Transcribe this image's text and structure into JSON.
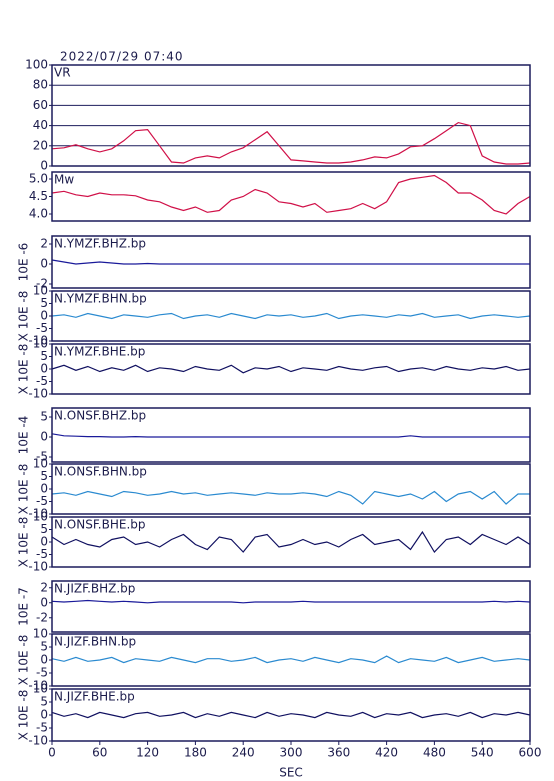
{
  "chart_data": [
    {
      "type": "line",
      "title": "2022/07/29 07:40",
      "label": "VR",
      "color": "#d01048",
      "grid": true,
      "x": [
        0,
        15,
        30,
        45,
        60,
        75,
        90,
        105,
        120,
        135,
        150,
        165,
        180,
        195,
        210,
        225,
        240,
        255,
        270,
        285,
        300,
        315,
        330,
        345,
        360,
        375,
        390,
        405,
        420,
        435,
        450,
        465,
        480,
        495,
        510,
        525,
        540,
        555,
        570,
        585,
        600
      ],
      "values": [
        17,
        18,
        21,
        17,
        14,
        17,
        25,
        35,
        36,
        20,
        4,
        3,
        8,
        10,
        8,
        14,
        18,
        26,
        34,
        20,
        6,
        5,
        4,
        3,
        3,
        4,
        6,
        9,
        8,
        12,
        19,
        20,
        27,
        35,
        43,
        40,
        10,
        4,
        2,
        2,
        3
      ],
      "xlim": [
        0,
        600
      ],
      "ylim": [
        0,
        100
      ],
      "yticks": [
        0,
        20,
        40,
        60,
        80,
        100
      ]
    },
    {
      "type": "line",
      "label": "Mw",
      "color": "#d01048",
      "x": [
        0,
        15,
        30,
        45,
        60,
        75,
        90,
        105,
        120,
        135,
        150,
        165,
        180,
        195,
        210,
        225,
        240,
        255,
        270,
        285,
        300,
        315,
        330,
        345,
        360,
        375,
        390,
        405,
        420,
        435,
        450,
        465,
        480,
        495,
        510,
        525,
        540,
        555,
        570,
        585,
        600
      ],
      "values": [
        4.6,
        4.65,
        4.55,
        4.5,
        4.6,
        4.55,
        4.55,
        4.52,
        4.4,
        4.35,
        4.2,
        4.1,
        4.2,
        4.05,
        4.1,
        4.4,
        4.5,
        4.7,
        4.6,
        4.35,
        4.3,
        4.2,
        4.3,
        4.05,
        4.1,
        4.15,
        4.3,
        4.15,
        4.35,
        4.9,
        5.0,
        5.05,
        5.1,
        4.9,
        4.6,
        4.6,
        4.4,
        4.1,
        4.0,
        4.3,
        4.5
      ],
      "xlim": [
        0,
        600
      ],
      "ylim": [
        3.8,
        5.2
      ],
      "yticks": [
        {
          "value": 4,
          "label": "4.0"
        },
        {
          "value": 4.5,
          "label": "4.5"
        },
        {
          "value": 5,
          "label": "5.0"
        }
      ]
    },
    {
      "type": "line",
      "label": "N.YMZF.BHZ.bp",
      "ylabel": "10E -6",
      "color": "#1a1a9a",
      "x": [
        0,
        15,
        30,
        45,
        60,
        75,
        90,
        105,
        120,
        135,
        150,
        165,
        180,
        195,
        210,
        225,
        240,
        255,
        270,
        285,
        300,
        315,
        330,
        345,
        360,
        375,
        390,
        405,
        420,
        435,
        450,
        465,
        480,
        495,
        510,
        525,
        540,
        555,
        570,
        585,
        600
      ],
      "values": [
        0.4,
        0.2,
        0,
        0.1,
        0.2,
        0.1,
        0,
        0,
        0.05,
        0,
        0,
        0,
        0,
        0,
        0,
        0,
        0,
        0,
        0,
        0,
        0,
        0,
        0,
        0,
        0,
        0,
        0,
        0,
        0,
        0,
        0,
        0,
        0,
        0,
        0,
        0,
        0,
        0,
        0,
        0,
        0
      ],
      "xlim": [
        0,
        600
      ],
      "ylim": [
        -2.4,
        2.8
      ],
      "yticks": [
        -2,
        0,
        2
      ]
    },
    {
      "type": "line",
      "label": "N.YMZF.BHN.bp",
      "ylabel": "X 10E -8",
      "color": "#2a8ad0",
      "x": [
        0,
        15,
        30,
        45,
        60,
        75,
        90,
        105,
        120,
        135,
        150,
        165,
        180,
        195,
        210,
        225,
        240,
        255,
        270,
        285,
        300,
        315,
        330,
        345,
        360,
        375,
        390,
        405,
        420,
        435,
        450,
        465,
        480,
        495,
        510,
        525,
        540,
        555,
        570,
        585,
        600
      ],
      "values": [
        0,
        0.5,
        -0.5,
        1,
        0,
        -1,
        0.5,
        0,
        -0.5,
        0.5,
        1,
        -1,
        0,
        0.5,
        -0.5,
        1,
        0,
        -1,
        0.5,
        0,
        0.5,
        -0.5,
        0,
        1,
        -1,
        0,
        0.5,
        0,
        -0.5,
        0.5,
        0,
        1,
        -0.5,
        0,
        0.5,
        -1,
        0,
        0.5,
        0,
        -0.5,
        0
      ],
      "xlim": [
        0,
        600
      ],
      "ylim": [
        -10,
        10
      ],
      "yticks": [
        -10,
        -5,
        0,
        5,
        10
      ]
    },
    {
      "type": "line",
      "label": "N.YMZF.BHE.bp",
      "ylabel": "X 10E -8",
      "color": "#101060",
      "x": [
        0,
        15,
        30,
        45,
        60,
        75,
        90,
        105,
        120,
        135,
        150,
        165,
        180,
        195,
        210,
        225,
        240,
        255,
        270,
        285,
        300,
        315,
        330,
        345,
        360,
        375,
        390,
        405,
        420,
        435,
        450,
        465,
        480,
        495,
        510,
        525,
        540,
        555,
        570,
        585,
        600
      ],
      "values": [
        0,
        1.5,
        -0.5,
        1,
        -1,
        0.5,
        -0.5,
        1.5,
        -1,
        0.5,
        0,
        -1,
        1,
        0,
        -0.5,
        1.5,
        -1.5,
        0.5,
        0,
        1,
        -1,
        0.5,
        0,
        -0.5,
        1,
        0,
        -0.5,
        0.5,
        1,
        -1,
        0,
        0.5,
        -0.5,
        1,
        0,
        -0.5,
        0.5,
        0,
        1,
        -0.5,
        0
      ],
      "xlim": [
        0,
        600
      ],
      "ylim": [
        -10,
        10
      ],
      "yticks": [
        -10,
        -5,
        0,
        5,
        10
      ]
    },
    {
      "type": "line",
      "label": "N.ONSF.BHZ.bp",
      "ylabel": "10E -4",
      "color": "#1a1a9a",
      "x": [
        0,
        15,
        30,
        45,
        60,
        75,
        90,
        105,
        120,
        135,
        150,
        165,
        180,
        195,
        210,
        225,
        240,
        255,
        270,
        285,
        300,
        315,
        330,
        345,
        360,
        375,
        390,
        405,
        420,
        435,
        450,
        465,
        480,
        495,
        510,
        525,
        540,
        555,
        570,
        585,
        600
      ],
      "values": [
        0.8,
        0.3,
        0.2,
        0.1,
        0.1,
        0,
        0,
        0.1,
        0,
        0,
        0,
        0,
        0,
        0,
        0,
        0,
        0,
        0,
        0,
        0,
        0,
        0,
        0,
        0,
        0,
        0,
        0,
        0,
        0,
        0,
        0.3,
        0,
        0,
        0,
        0,
        0,
        0,
        0,
        0,
        0,
        0
      ],
      "xlim": [
        0,
        600
      ],
      "ylim": [
        -6.25,
        7.25
      ],
      "yticks": [
        -5,
        0,
        5
      ]
    },
    {
      "type": "line",
      "label": "N.ONSF.BHN.bp",
      "ylabel": "X 10E -8",
      "color": "#2a8ad0",
      "x": [
        0,
        15,
        30,
        45,
        60,
        75,
        90,
        105,
        120,
        135,
        150,
        165,
        180,
        195,
        210,
        225,
        240,
        255,
        270,
        285,
        300,
        315,
        330,
        345,
        360,
        375,
        390,
        405,
        420,
        435,
        450,
        465,
        480,
        495,
        510,
        525,
        540,
        555,
        570,
        585,
        600
      ],
      "values": [
        -2,
        -1.5,
        -2.5,
        -1,
        -2,
        -3,
        -1,
        -1.5,
        -2.5,
        -2,
        -1,
        -2,
        -1.5,
        -2.5,
        -2,
        -1.5,
        -2,
        -2.5,
        -1.5,
        -2,
        -2,
        -1.5,
        -2,
        -3,
        -1,
        -2.5,
        -6,
        -1,
        -2,
        -3,
        -2,
        -4,
        -1,
        -5,
        -2,
        -1,
        -4,
        -1,
        -6,
        -2,
        -2
      ],
      "xlim": [
        0,
        600
      ],
      "ylim": [
        -10,
        10
      ],
      "yticks": [
        -10,
        -5,
        0,
        5,
        10
      ]
    },
    {
      "type": "line",
      "label": "N.ONSF.BHE.bp",
      "ylabel": "X 10E -8",
      "color": "#101060",
      "x": [
        0,
        15,
        30,
        45,
        60,
        75,
        90,
        105,
        120,
        135,
        150,
        165,
        180,
        195,
        210,
        225,
        240,
        255,
        270,
        285,
        300,
        315,
        330,
        345,
        360,
        375,
        390,
        405,
        420,
        435,
        450,
        465,
        480,
        495,
        510,
        525,
        540,
        555,
        570,
        585,
        600
      ],
      "values": [
        2,
        -1,
        1,
        -1,
        -2,
        1,
        2,
        -1,
        0,
        -2,
        1,
        3,
        -1,
        -3,
        2,
        1,
        -4,
        2,
        3,
        -2,
        -1,
        1,
        -1,
        0,
        -2,
        1,
        3,
        -1,
        0,
        1,
        -3,
        4,
        -4,
        1,
        2,
        -1,
        3,
        1,
        -1,
        2,
        -1
      ],
      "xlim": [
        0,
        600
      ],
      "ylim": [
        -10,
        10
      ],
      "yticks": [
        -10,
        -5,
        0,
        5,
        10
      ]
    },
    {
      "type": "line",
      "label": "N.JIZF.BHZ.bp",
      "ylabel": "10E -7",
      "color": "#1a1a9a",
      "x": [
        0,
        15,
        30,
        45,
        60,
        75,
        90,
        105,
        120,
        135,
        150,
        165,
        180,
        195,
        210,
        225,
        240,
        255,
        270,
        285,
        300,
        315,
        330,
        345,
        360,
        375,
        390,
        405,
        420,
        435,
        450,
        465,
        480,
        495,
        510,
        525,
        540,
        555,
        570,
        585,
        600
      ],
      "values": [
        0.2,
        0.1,
        0.2,
        0.3,
        0.2,
        0.1,
        0.2,
        0.1,
        0,
        0.1,
        0.1,
        0.1,
        0.1,
        0.1,
        0.1,
        0.1,
        0,
        0.1,
        0.1,
        0.1,
        0.1,
        0.2,
        0.1,
        0.1,
        0.1,
        0.1,
        0.1,
        0.1,
        0.1,
        0.1,
        0.1,
        0.1,
        0.1,
        0.1,
        0.1,
        0.1,
        0.1,
        0.2,
        0.1,
        0.2,
        0.1
      ],
      "xlim": [
        0,
        600
      ],
      "ylim": [
        -3.9,
        2.9
      ],
      "yticks": [
        -2,
        0,
        2
      ]
    },
    {
      "type": "line",
      "label": "N.JIZF.BHN.bp",
      "ylabel": "X 10E -8",
      "color": "#2a8ad0",
      "x": [
        0,
        15,
        30,
        45,
        60,
        75,
        90,
        105,
        120,
        135,
        150,
        165,
        180,
        195,
        210,
        225,
        240,
        255,
        270,
        285,
        300,
        315,
        330,
        345,
        360,
        375,
        390,
        405,
        420,
        435,
        450,
        465,
        480,
        495,
        510,
        525,
        540,
        555,
        570,
        585,
        600
      ],
      "values": [
        0.5,
        -0.5,
        1,
        -0.5,
        0,
        1,
        -1,
        0.5,
        0,
        -0.5,
        1,
        0,
        -1,
        0.5,
        0.5,
        -0.5,
        0,
        1,
        -1,
        0,
        0.5,
        -0.5,
        1,
        0,
        -1,
        0.5,
        0,
        -1,
        1.5,
        -1,
        0.5,
        0,
        -0.5,
        1,
        -1,
        0,
        1,
        -0.5,
        0,
        0.5,
        0
      ],
      "xlim": [
        0,
        600
      ],
      "ylim": [
        -10,
        10
      ],
      "yticks": [
        -10,
        -5,
        0,
        5,
        10
      ]
    },
    {
      "type": "line",
      "label": "N.JIZF.BHE.bp",
      "ylabel": "X 10E -8",
      "color": "#101060",
      "xlabel": "SEC",
      "x": [
        0,
        15,
        30,
        45,
        60,
        75,
        90,
        105,
        120,
        135,
        150,
        165,
        180,
        195,
        210,
        225,
        240,
        255,
        270,
        285,
        300,
        315,
        330,
        345,
        360,
        375,
        390,
        405,
        420,
        435,
        450,
        465,
        480,
        495,
        510,
        525,
        540,
        555,
        570,
        585,
        600
      ],
      "values": [
        1,
        -0.5,
        0.5,
        -1,
        1,
        0,
        -1,
        0.5,
        1,
        -0.5,
        0,
        1,
        -1,
        0.5,
        -0.5,
        1,
        0,
        -1,
        1,
        -0.5,
        0.5,
        0,
        -1,
        1,
        0,
        -0.5,
        1,
        -1,
        0.5,
        0,
        1,
        -1,
        0,
        0.5,
        -0.5,
        1,
        -1,
        0.5,
        0,
        1,
        0
      ],
      "xlim": [
        0,
        600
      ],
      "ylim": [
        -10,
        10
      ],
      "yticks": [
        -10,
        -5,
        0,
        5,
        10
      ],
      "xticks": [
        0,
        60,
        120,
        180,
        240,
        300,
        360,
        420,
        480,
        540,
        600
      ]
    }
  ]
}
